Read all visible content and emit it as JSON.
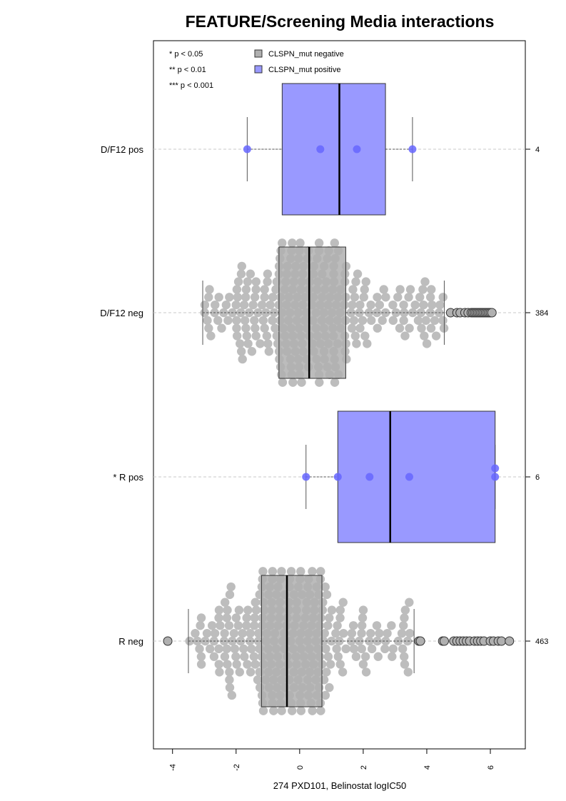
{
  "chart_data": {
    "type": "boxplot",
    "title": "FEATURE/Screening Media interactions",
    "xlabel": "274 PXD101, Belinostat logIC50",
    "xlim": [
      -4.6,
      7.1
    ],
    "xticks": [
      -4,
      -2,
      0,
      2,
      4,
      6
    ],
    "significance_legend": [
      "* p < 0.05",
      "** p < 0.01",
      "*** p < 0.001"
    ],
    "legend": [
      {
        "name": "CLSPN_mut negative",
        "color": "#b0b0b0"
      },
      {
        "name": "CLSPN_mut positive",
        "color": "#9999ff"
      }
    ],
    "groups": [
      {
        "label": "D/F12 pos",
        "n": "4",
        "mutation": "positive",
        "whisker_low": -1.65,
        "q1": -0.55,
        "median": 1.25,
        "q3": 2.7,
        "whisker_high": 3.55,
        "points": [
          -1.65,
          0.65,
          1.8,
          3.55
        ],
        "outliers": []
      },
      {
        "label": "D/F12 neg",
        "n": "384",
        "mutation": "negative",
        "whisker_low": -3.05,
        "q1": -0.65,
        "median": 0.3,
        "q3": 1.45,
        "whisker_high": 4.55,
        "points": [],
        "outliers": [
          4.75,
          4.95,
          5.05,
          5.2,
          5.3,
          5.4,
          5.45,
          5.5,
          5.55,
          5.6,
          5.65,
          5.7,
          5.75,
          5.8,
          5.85,
          5.9,
          5.95,
          6.0,
          6.05
        ]
      },
      {
        "label": "* R pos",
        "n": "6",
        "mutation": "positive",
        "whisker_low": 0.2,
        "q1": 1.2,
        "median": 2.85,
        "q3": 6.15,
        "whisker_high": 6.15,
        "points": [
          0.2,
          1.2,
          2.2,
          3.45,
          6.15,
          6.15
        ],
        "outliers": []
      },
      {
        "label": "R neg",
        "n": "463",
        "mutation": "negative",
        "whisker_low": -3.5,
        "q1": -1.2,
        "median": -0.4,
        "q3": 0.7,
        "whisker_high": 3.6,
        "points": [],
        "outliers": [
          -4.15,
          3.75,
          3.8,
          4.5,
          4.55,
          4.85,
          4.95,
          5.05,
          5.15,
          5.25,
          5.35,
          5.5,
          5.6,
          5.7,
          5.8,
          6.0,
          6.1,
          6.25,
          6.35,
          6.6
        ]
      }
    ]
  }
}
